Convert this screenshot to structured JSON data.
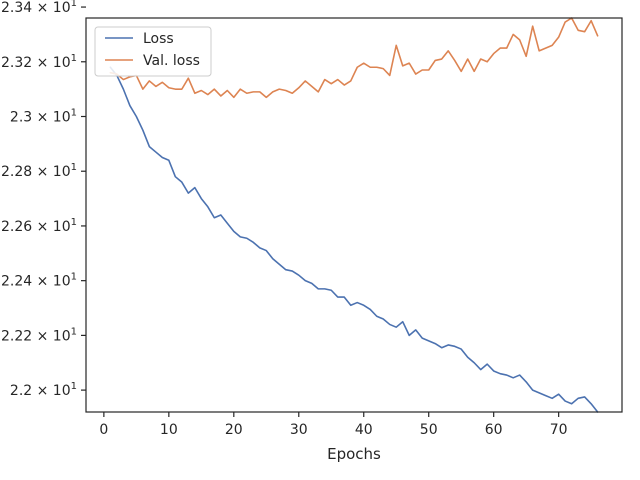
{
  "chart_data": {
    "type": "line",
    "title": "",
    "xlabel": "Epochs",
    "ylabel": "",
    "xlim": [
      -2.75,
      79.75
    ],
    "ylim": [
      21.92,
      23.36
    ],
    "grid": false,
    "legend_position": "top-left",
    "x_ticks": [
      0,
      10,
      20,
      30,
      40,
      50,
      60,
      70
    ],
    "x_tick_labels": [
      "0",
      "10",
      "20",
      "30",
      "40",
      "50",
      "60",
      "70"
    ],
    "y_ticks": [
      {
        "value": 22.0,
        "mantissa": "2.2"
      },
      {
        "value": 22.2,
        "mantissa": "2.22"
      },
      {
        "value": 22.4,
        "mantissa": "2.24"
      },
      {
        "value": 22.6,
        "mantissa": "2.26"
      },
      {
        "value": 22.8,
        "mantissa": "2.28"
      },
      {
        "value": 23.0,
        "mantissa": "2.3"
      },
      {
        "value": 23.2,
        "mantissa": "2.32"
      },
      {
        "value": 23.4,
        "mantissa": "2.34"
      }
    ],
    "y_tick_base": "× 10",
    "y_tick_exponent": "1",
    "x": [
      1,
      2,
      3,
      4,
      5,
      6,
      7,
      8,
      9,
      10,
      11,
      12,
      13,
      14,
      15,
      16,
      17,
      18,
      19,
      20,
      21,
      22,
      23,
      24,
      25,
      26,
      27,
      28,
      29,
      30,
      31,
      32,
      33,
      34,
      35,
      36,
      37,
      38,
      39,
      40,
      41,
      42,
      43,
      44,
      45,
      46,
      47,
      48,
      49,
      50,
      51,
      52,
      53,
      54,
      55,
      56,
      57,
      58,
      59,
      60,
      61,
      62,
      63,
      64,
      65,
      66,
      67,
      68,
      69,
      70,
      71,
      72,
      73,
      74,
      75,
      76
    ],
    "series": [
      {
        "name": "Loss",
        "color": "#4c72b0",
        "values": [
          23.18,
          23.15,
          23.1,
          23.04,
          23.0,
          22.95,
          22.89,
          22.87,
          22.85,
          22.84,
          22.78,
          22.76,
          22.72,
          22.74,
          22.7,
          22.67,
          22.63,
          22.64,
          22.61,
          22.58,
          22.56,
          22.555,
          22.54,
          22.52,
          22.51,
          22.48,
          22.46,
          22.44,
          22.435,
          22.42,
          22.4,
          22.39,
          22.37,
          22.37,
          22.365,
          22.34,
          22.34,
          22.31,
          22.32,
          22.31,
          22.295,
          22.27,
          22.26,
          22.24,
          22.23,
          22.25,
          22.2,
          22.22,
          22.19,
          22.18,
          22.17,
          22.155,
          22.165,
          22.16,
          22.15,
          22.12,
          22.1,
          22.075,
          22.095,
          22.07,
          22.06,
          22.055,
          22.045,
          22.055,
          22.03,
          22.0,
          21.99,
          21.98,
          21.97,
          21.985,
          21.96,
          21.95,
          21.97,
          21.975,
          21.95,
          21.92
        ]
      },
      {
        "name": "Val. loss",
        "color": "#dd8452",
        "values": [
          23.16,
          23.155,
          23.135,
          23.145,
          23.15,
          23.1,
          23.13,
          23.11,
          23.125,
          23.105,
          23.1,
          23.1,
          23.14,
          23.085,
          23.095,
          23.08,
          23.1,
          23.075,
          23.095,
          23.07,
          23.1,
          23.085,
          23.09,
          23.09,
          23.07,
          23.09,
          23.1,
          23.095,
          23.085,
          23.105,
          23.13,
          23.11,
          23.09,
          23.135,
          23.12,
          23.135,
          23.115,
          23.13,
          23.18,
          23.195,
          23.18,
          23.18,
          23.175,
          23.15,
          23.26,
          23.185,
          23.195,
          23.155,
          23.17,
          23.17,
          23.205,
          23.21,
          23.24,
          23.205,
          23.165,
          23.21,
          23.165,
          23.21,
          23.2,
          23.23,
          23.25,
          23.25,
          23.3,
          23.28,
          23.22,
          23.33,
          23.24,
          23.25,
          23.26,
          23.29,
          23.345,
          23.36,
          23.315,
          23.31,
          23.35,
          23.295
        ]
      }
    ]
  }
}
